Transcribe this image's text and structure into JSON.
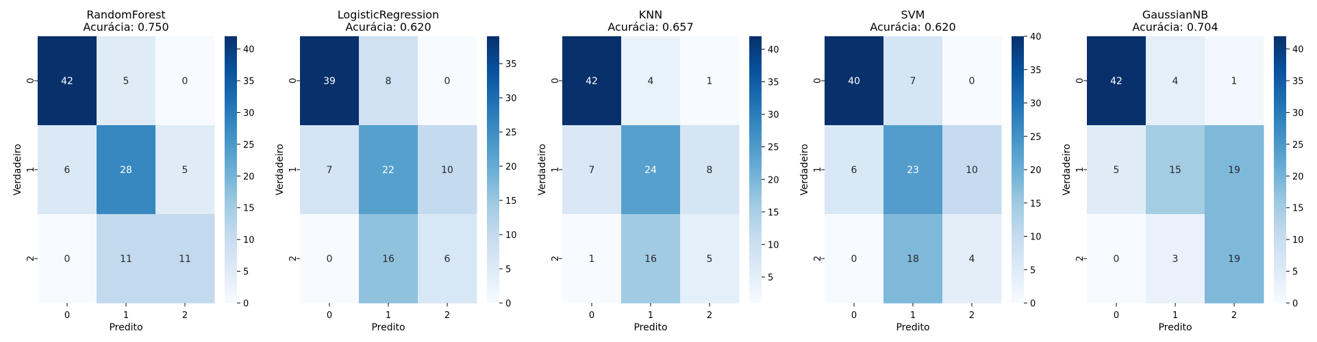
{
  "chart_data": [
    {
      "type": "heatmap",
      "title": "RandomForest",
      "subtitle": "Acurácia: 0.750",
      "xlabel": "Predito",
      "ylabel": "Verdadeiro",
      "x_ticks": [
        "0",
        "1",
        "2"
      ],
      "y_ticks": [
        "0",
        "1",
        "2"
      ],
      "values": [
        [
          42,
          5,
          0
        ],
        [
          6,
          28,
          5
        ],
        [
          0,
          11,
          11
        ]
      ],
      "colorbar_ticks": [
        "0",
        "5",
        "10",
        "15",
        "20",
        "25",
        "30",
        "35",
        "40"
      ],
      "colorbar_range": [
        0,
        42
      ]
    },
    {
      "type": "heatmap",
      "title": "LogisticRegression",
      "subtitle": "Acurácia: 0.620",
      "xlabel": "Predito",
      "ylabel": "Verdadeiro",
      "x_ticks": [
        "0",
        "1",
        "2"
      ],
      "y_ticks": [
        "0",
        "1",
        "2"
      ],
      "values": [
        [
          39,
          8,
          0
        ],
        [
          7,
          22,
          10
        ],
        [
          0,
          16,
          6
        ]
      ],
      "colorbar_ticks": [
        "0",
        "5",
        "10",
        "15",
        "20",
        "25",
        "30",
        "35"
      ],
      "colorbar_range": [
        0,
        39
      ]
    },
    {
      "type": "heatmap",
      "title": "KNN",
      "subtitle": "Acurácia: 0.657",
      "xlabel": "Predito",
      "ylabel": "Verdadeiro",
      "x_ticks": [
        "0",
        "1",
        "2"
      ],
      "y_ticks": [
        "0",
        "1",
        "2"
      ],
      "values": [
        [
          42,
          4,
          1
        ],
        [
          7,
          24,
          8
        ],
        [
          1,
          16,
          5
        ]
      ],
      "colorbar_ticks": [
        "5",
        "10",
        "15",
        "20",
        "25",
        "30",
        "35",
        "40"
      ],
      "colorbar_range": [
        1,
        42
      ]
    },
    {
      "type": "heatmap",
      "title": "SVM",
      "subtitle": "Acurácia: 0.620",
      "xlabel": "Predito",
      "ylabel": "Verdadeiro",
      "x_ticks": [
        "0",
        "1",
        "2"
      ],
      "y_ticks": [
        "0",
        "1",
        "2"
      ],
      "values": [
        [
          40,
          7,
          0
        ],
        [
          6,
          23,
          10
        ],
        [
          0,
          18,
          4
        ]
      ],
      "colorbar_ticks": [
        "0",
        "5",
        "10",
        "15",
        "20",
        "25",
        "30",
        "35",
        "40"
      ],
      "colorbar_range": [
        0,
        40
      ]
    },
    {
      "type": "heatmap",
      "title": "GaussianNB",
      "subtitle": "Acurácia: 0.704",
      "xlabel": "Predito",
      "ylabel": "Verdadeiro",
      "x_ticks": [
        "0",
        "1",
        "2"
      ],
      "y_ticks": [
        "0",
        "1",
        "2"
      ],
      "values": [
        [
          42,
          4,
          1
        ],
        [
          5,
          15,
          19
        ],
        [
          0,
          3,
          19
        ]
      ],
      "colorbar_ticks": [
        "0",
        "5",
        "10",
        "15",
        "20",
        "25",
        "30",
        "35",
        "40"
      ],
      "colorbar_range": [
        0,
        42
      ]
    }
  ],
  "colormap": [
    "#f7fbff",
    "#deebf7",
    "#c6dbef",
    "#9ecae1",
    "#6baed6",
    "#4292c6",
    "#2171b5",
    "#08519c",
    "#08306b"
  ]
}
